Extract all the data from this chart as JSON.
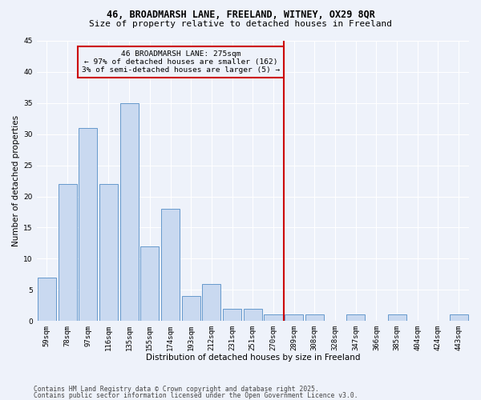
{
  "title_line1": "46, BROADMARSH LANE, FREELAND, WITNEY, OX29 8QR",
  "title_line2": "Size of property relative to detached houses in Freeland",
  "xlabel": "Distribution of detached houses by size in Freeland",
  "ylabel": "Number of detached properties",
  "categories": [
    "59sqm",
    "78sqm",
    "97sqm",
    "116sqm",
    "135sqm",
    "155sqm",
    "174sqm",
    "193sqm",
    "212sqm",
    "231sqm",
    "251sqm",
    "270sqm",
    "289sqm",
    "308sqm",
    "328sqm",
    "347sqm",
    "366sqm",
    "385sqm",
    "404sqm",
    "424sqm",
    "443sqm"
  ],
  "values": [
    7,
    22,
    31,
    22,
    35,
    12,
    18,
    4,
    6,
    2,
    2,
    1,
    1,
    1,
    0,
    1,
    0,
    1,
    0,
    0,
    1
  ],
  "bar_color": "#c9d9f0",
  "bar_edge_color": "#6699cc",
  "vline_x_index": 11.5,
  "vline_color": "#cc0000",
  "annotation_text": "46 BROADMARSH LANE: 275sqm\n← 97% of detached houses are smaller (162)\n3% of semi-detached houses are larger (5) →",
  "annotation_box_color": "#cc0000",
  "ylim": [
    0,
    45
  ],
  "yticks": [
    0,
    5,
    10,
    15,
    20,
    25,
    30,
    35,
    40,
    45
  ],
  "footer_line1": "Contains HM Land Registry data © Crown copyright and database right 2025.",
  "footer_line2": "Contains public sector information licensed under the Open Government Licence v3.0.",
  "background_color": "#eef2fa",
  "grid_color": "#ffffff",
  "title_fontsize": 8.5,
  "subtitle_fontsize": 8,
  "label_fontsize": 7.5,
  "tick_fontsize": 6.5,
  "footer_fontsize": 5.8,
  "annot_fontsize": 6.8
}
